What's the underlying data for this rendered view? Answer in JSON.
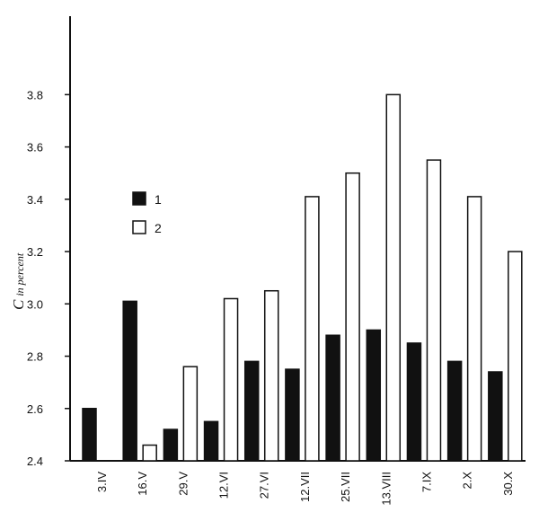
{
  "chart_data": {
    "type": "bar",
    "categories": [
      "3.IV",
      "16.V",
      "29.V",
      "12.VI",
      "27.VI",
      "12.VII",
      "25.VII",
      "13.VIII",
      "7.IX",
      "2.X",
      "30.X"
    ],
    "series": [
      {
        "name": "1",
        "color": "#111111",
        "values": [
          2.6,
          3.01,
          2.52,
          2.55,
          2.78,
          2.75,
          2.88,
          2.9,
          2.85,
          2.78,
          2.74
        ]
      },
      {
        "name": "2",
        "color": "#ffffff",
        "values": [
          null,
          2.46,
          2.76,
          3.02,
          3.05,
          3.41,
          3.5,
          3.8,
          3.55,
          3.41,
          3.2
        ]
      }
    ],
    "ylabel": {
      "main": "C",
      "sub": "in percent"
    },
    "xlabel": "",
    "ylim": [
      2.4,
      4.1
    ],
    "yticks": [
      "2.4",
      "2.6",
      "2.8",
      "3.0",
      "3.2",
      "3.4",
      "3.6",
      "3.8"
    ],
    "legend": {
      "placement": "upper-left",
      "entries": [
        "1",
        "2"
      ]
    },
    "grid": false
  }
}
